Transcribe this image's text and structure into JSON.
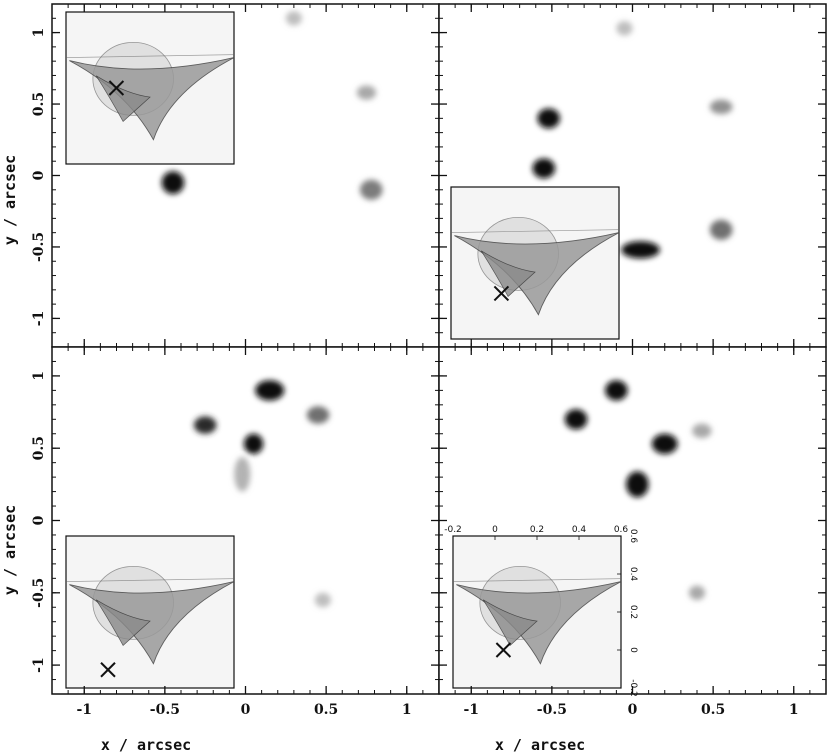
{
  "colors": {
    "frame": "#111111",
    "ink": "#111111",
    "inset_bg": "#f5f5f5",
    "caustic_fill": "#9a9a9a",
    "background": "#ffffff"
  },
  "icons": {
    "source_marker": "cross-icon"
  },
  "axis_labels": {
    "x": "x / arcsec",
    "y": "y / arcsec"
  },
  "chart_data": [
    {
      "type": "heatmap",
      "panel": "top-left",
      "xlim": [
        -1.2,
        1.2
      ],
      "ylim": [
        -1.2,
        1.2
      ],
      "x_ticks": [
        -1,
        -0.5,
        0,
        0.5,
        1
      ],
      "y_ticks": [
        1,
        0.5,
        0,
        -0.5,
        -1
      ],
      "x_tick_labels": [],
      "y_tick_labels": [
        "1",
        "0.5",
        "0",
        "-0.5",
        "-1"
      ],
      "xlabel": "",
      "ylabel": "y / arcsec",
      "images": [
        {
          "x": -0.45,
          "y": -0.05,
          "sx": 0.07,
          "sy": 0.08,
          "intensity": 1.0
        },
        {
          "x": 0.78,
          "y": -0.1,
          "sx": 0.07,
          "sy": 0.07,
          "intensity": 0.5
        },
        {
          "x": 0.75,
          "y": 0.58,
          "sx": 0.06,
          "sy": 0.05,
          "intensity": 0.3
        },
        {
          "x": 0.3,
          "y": 1.1,
          "sx": 0.05,
          "sy": 0.05,
          "intensity": 0.2
        }
      ],
      "inset": {
        "position": "top-left",
        "source_x": 0.3,
        "source_y": 0.5
      }
    },
    {
      "type": "heatmap",
      "panel": "top-right",
      "xlim": [
        -1.2,
        1.2
      ],
      "ylim": [
        -1.2,
        1.2
      ],
      "x_ticks": [
        -1,
        -0.5,
        0,
        0.5,
        1
      ],
      "y_ticks": [
        1,
        0.5,
        0,
        -0.5,
        -1
      ],
      "x_tick_labels": [],
      "y_tick_labels": [],
      "xlabel": "",
      "ylabel": "",
      "images": [
        {
          "x": -0.52,
          "y": 0.4,
          "sx": 0.07,
          "sy": 0.07,
          "intensity": 1.0
        },
        {
          "x": -0.55,
          "y": 0.05,
          "sx": 0.07,
          "sy": 0.07,
          "intensity": 1.0
        },
        {
          "x": 0.05,
          "y": -0.52,
          "sx": 0.12,
          "sy": 0.06,
          "intensity": 1.0
        },
        {
          "x": 0.55,
          "y": -0.38,
          "sx": 0.07,
          "sy": 0.07,
          "intensity": 0.55
        },
        {
          "x": 0.55,
          "y": 0.48,
          "sx": 0.07,
          "sy": 0.05,
          "intensity": 0.4
        },
        {
          "x": -0.05,
          "y": 1.03,
          "sx": 0.05,
          "sy": 0.05,
          "intensity": 0.2
        }
      ],
      "inset": {
        "position": "middle-left",
        "source_x": 0.3,
        "source_y": 0.3
      }
    },
    {
      "type": "heatmap",
      "panel": "bottom-left",
      "xlim": [
        -1.2,
        1.2
      ],
      "ylim": [
        -1.2,
        1.2
      ],
      "x_ticks": [
        -1,
        -0.5,
        0,
        0.5,
        1
      ],
      "y_ticks": [
        1,
        0.5,
        0,
        -0.5,
        -1
      ],
      "x_tick_labels": [
        "-1",
        "-0.5",
        "0",
        "0.5",
        "1"
      ],
      "y_tick_labels": [
        "1",
        "0.5",
        "0",
        "-0.5",
        "-1"
      ],
      "xlabel": "x / arcsec",
      "ylabel": "y / arcsec",
      "images": [
        {
          "x": 0.15,
          "y": 0.9,
          "sx": 0.09,
          "sy": 0.07,
          "intensity": 1.0
        },
        {
          "x": 0.05,
          "y": 0.53,
          "sx": 0.06,
          "sy": 0.07,
          "intensity": 1.0
        },
        {
          "x": -0.25,
          "y": 0.66,
          "sx": 0.07,
          "sy": 0.06,
          "intensity": 0.85
        },
        {
          "x": 0.45,
          "y": 0.73,
          "sx": 0.07,
          "sy": 0.06,
          "intensity": 0.55
        },
        {
          "x": -0.02,
          "y": 0.32,
          "sx": 0.05,
          "sy": 0.12,
          "intensity": 0.25
        },
        {
          "x": 0.48,
          "y": -0.55,
          "sx": 0.05,
          "sy": 0.05,
          "intensity": 0.2
        }
      ],
      "inset": {
        "position": "bottom-left",
        "source_x": 0.25,
        "source_y": 0.12
      }
    },
    {
      "type": "heatmap",
      "panel": "bottom-right",
      "xlim": [
        -1.2,
        1.2
      ],
      "ylim": [
        -1.2,
        1.2
      ],
      "x_ticks": [
        -1,
        -0.5,
        0,
        0.5,
        1
      ],
      "y_ticks": [
        1,
        0.5,
        0,
        -0.5,
        -1
      ],
      "x_tick_labels": [
        "-1",
        "-0.5",
        "0",
        "0.5",
        "1"
      ],
      "y_tick_labels": [],
      "xlabel": "x / arcsec",
      "ylabel": "",
      "images": [
        {
          "x": -0.1,
          "y": 0.9,
          "sx": 0.07,
          "sy": 0.07,
          "intensity": 1.0
        },
        {
          "x": -0.35,
          "y": 0.7,
          "sx": 0.07,
          "sy": 0.07,
          "intensity": 1.0
        },
        {
          "x": 0.2,
          "y": 0.53,
          "sx": 0.08,
          "sy": 0.07,
          "intensity": 1.0
        },
        {
          "x": 0.03,
          "y": 0.25,
          "sx": 0.07,
          "sy": 0.09,
          "intensity": 1.0
        },
        {
          "x": 0.43,
          "y": 0.62,
          "sx": 0.06,
          "sy": 0.05,
          "intensity": 0.3
        },
        {
          "x": 0.4,
          "y": -0.5,
          "sx": 0.05,
          "sy": 0.05,
          "intensity": 0.3
        }
      ],
      "inset": {
        "position": "bottom-left",
        "source_x": 0.3,
        "source_y": 0.25,
        "with_axes": true,
        "xlim": [
          -0.2,
          0.6
        ],
        "ylim": [
          -0.2,
          0.6
        ],
        "x_tick_labels": [
          "-0.2",
          "0",
          "0.2",
          "0.4",
          "0.6"
        ],
        "y_tick_labels": [
          "-0.2",
          "0",
          "0.2",
          "0.4",
          "0.6"
        ]
      }
    }
  ]
}
